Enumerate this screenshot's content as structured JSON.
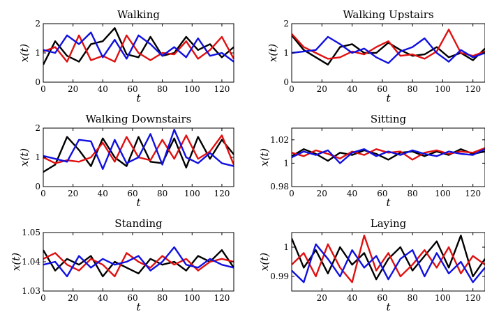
{
  "series_colors": [
    "#000000",
    "#e01010",
    "#1010e0"
  ],
  "chart_data": [
    {
      "type": "line",
      "title": "Walking",
      "xlabel": "t",
      "ylabel": "x(t)",
      "xlim": [
        0,
        128
      ],
      "ylim": [
        0,
        2
      ],
      "xticks": [
        0,
        20,
        40,
        60,
        80,
        100,
        120
      ],
      "yticks": [
        0,
        1,
        2
      ],
      "grid": false,
      "x": [
        0,
        8,
        16,
        24,
        32,
        40,
        48,
        56,
        64,
        72,
        80,
        88,
        96,
        104,
        112,
        120,
        128
      ],
      "series": [
        {
          "color": "#000000",
          "values": [
            0.6,
            1.4,
            0.9,
            0.7,
            1.3,
            1.4,
            1.85,
            0.95,
            0.85,
            1.55,
            0.9,
            1.0,
            1.55,
            1.1,
            1.3,
            0.85,
            1.2
          ]
        },
        {
          "color": "#e01010",
          "values": [
            1.05,
            1.2,
            0.7,
            1.6,
            0.75,
            0.9,
            0.7,
            1.6,
            1.0,
            0.75,
            1.0,
            0.95,
            1.4,
            0.8,
            1.1,
            1.55,
            0.8
          ]
        },
        {
          "color": "#1010e0",
          "values": [
            1.1,
            1.0,
            1.6,
            1.3,
            1.7,
            0.85,
            1.45,
            0.8,
            1.6,
            1.3,
            0.9,
            1.2,
            0.85,
            1.5,
            0.9,
            1.0,
            0.7
          ]
        }
      ]
    },
    {
      "type": "line",
      "title": "Walking Upstairs",
      "xlabel": "t",
      "ylabel": "x(t)",
      "xlim": [
        0,
        128
      ],
      "ylim": [
        0,
        2
      ],
      "xticks": [
        0,
        20,
        40,
        60,
        80,
        100,
        120
      ],
      "yticks": [
        0,
        1,
        2
      ],
      "grid": false,
      "x": [
        0,
        8,
        16,
        24,
        32,
        40,
        48,
        56,
        64,
        72,
        80,
        88,
        96,
        104,
        112,
        120,
        128
      ],
      "series": [
        {
          "color": "#000000",
          "values": [
            1.6,
            1.1,
            0.85,
            0.6,
            1.2,
            1.3,
            1.0,
            1.0,
            1.35,
            1.1,
            0.9,
            0.95,
            1.2,
            0.85,
            1.0,
            0.75,
            1.15
          ]
        },
        {
          "color": "#e01010",
          "values": [
            1.65,
            1.2,
            1.0,
            0.8,
            0.85,
            1.05,
            0.95,
            1.2,
            1.4,
            0.9,
            0.95,
            0.8,
            1.05,
            1.8,
            1.0,
            0.9,
            1.05
          ]
        },
        {
          "color": "#1010e0",
          "values": [
            1.0,
            1.05,
            1.1,
            1.55,
            1.3,
            1.0,
            1.15,
            0.85,
            0.65,
            1.05,
            1.2,
            1.5,
            1.0,
            0.7,
            1.1,
            0.85,
            1.0
          ]
        }
      ]
    },
    {
      "type": "line",
      "title": "Walking Downstairs",
      "xlabel": "t",
      "ylabel": "x(t)",
      "xlim": [
        0,
        128
      ],
      "ylim": [
        0,
        2
      ],
      "xticks": [
        0,
        20,
        40,
        60,
        80,
        100,
        120
      ],
      "yticks": [
        0,
        1,
        2
      ],
      "grid": false,
      "x": [
        0,
        8,
        16,
        24,
        32,
        40,
        48,
        56,
        64,
        72,
        80,
        88,
        96,
        104,
        112,
        120,
        128
      ],
      "series": [
        {
          "color": "#000000",
          "values": [
            0.5,
            0.75,
            1.7,
            1.25,
            0.7,
            1.65,
            1.0,
            0.7,
            1.7,
            0.85,
            0.8,
            1.65,
            0.65,
            1.7,
            0.95,
            1.6,
            1.1
          ]
        },
        {
          "color": "#e01010",
          "values": [
            1.0,
            0.8,
            0.9,
            0.85,
            1.0,
            1.5,
            0.85,
            1.7,
            1.0,
            0.9,
            1.6,
            0.95,
            1.75,
            0.95,
            1.2,
            1.75,
            0.75
          ]
        },
        {
          "color": "#1010e0",
          "values": [
            1.05,
            0.95,
            0.85,
            1.6,
            1.55,
            0.6,
            1.6,
            0.8,
            1.0,
            1.8,
            0.75,
            1.95,
            1.0,
            0.8,
            1.15,
            0.8,
            0.7
          ]
        }
      ]
    },
    {
      "type": "line",
      "title": "Sitting",
      "xlabel": "t",
      "ylabel": "x(t)",
      "xlim": [
        0,
        128
      ],
      "ylim": [
        0.98,
        1.03
      ],
      "xticks": [
        0,
        20,
        40,
        60,
        80,
        100,
        120
      ],
      "yticks": [
        0.98,
        1,
        1.02
      ],
      "ytick_labels": [
        "0.98",
        "1",
        "1.02"
      ],
      "grid": false,
      "x": [
        0,
        8,
        16,
        24,
        32,
        40,
        48,
        56,
        64,
        72,
        80,
        88,
        96,
        104,
        112,
        120,
        128
      ],
      "series": [
        {
          "color": "#000000",
          "values": [
            1.006,
            1.012,
            1.008,
            1.002,
            1.009,
            1.007,
            1.011,
            1.008,
            1.003,
            1.009,
            1.01,
            1.006,
            1.01,
            1.007,
            1.012,
            1.008,
            1.01
          ]
        },
        {
          "color": "#e01010",
          "values": [
            1.009,
            1.006,
            1.011,
            1.008,
            1.004,
            1.01,
            1.007,
            1.012,
            1.009,
            1.01,
            1.003,
            1.009,
            1.011,
            1.008,
            1.01,
            1.009,
            1.013
          ]
        },
        {
          "color": "#1010e0",
          "values": [
            1.005,
            1.01,
            1.007,
            1.011,
            1.0,
            1.009,
            1.012,
            1.006,
            1.01,
            1.007,
            1.011,
            1.008,
            1.006,
            1.01,
            1.008,
            1.007,
            1.012
          ]
        }
      ]
    },
    {
      "type": "line",
      "title": "Standing",
      "xlabel": "t",
      "ylabel": "x(t)",
      "xlim": [
        0,
        128
      ],
      "ylim": [
        1.03,
        1.05
      ],
      "xticks": [
        0,
        20,
        40,
        60,
        80,
        100,
        120
      ],
      "yticks": [
        1.03,
        1.04,
        1.05
      ],
      "ytick_labels": [
        "1.03",
        "1.04",
        "1.05"
      ],
      "grid": false,
      "x": [
        0,
        8,
        16,
        24,
        32,
        40,
        48,
        56,
        64,
        72,
        80,
        88,
        96,
        104,
        112,
        120,
        128
      ],
      "series": [
        {
          "color": "#000000",
          "values": [
            1.044,
            1.037,
            1.041,
            1.039,
            1.042,
            1.035,
            1.04,
            1.038,
            1.036,
            1.041,
            1.039,
            1.04,
            1.037,
            1.042,
            1.04,
            1.044,
            1.038
          ]
        },
        {
          "color": "#e01010",
          "values": [
            1.041,
            1.043,
            1.039,
            1.037,
            1.041,
            1.039,
            1.035,
            1.043,
            1.04,
            1.038,
            1.042,
            1.039,
            1.041,
            1.037,
            1.04,
            1.041,
            1.04
          ]
        },
        {
          "color": "#1010e0",
          "values": [
            1.039,
            1.04,
            1.035,
            1.042,
            1.038,
            1.041,
            1.039,
            1.04,
            1.042,
            1.037,
            1.04,
            1.045,
            1.039,
            1.038,
            1.041,
            1.039,
            1.038
          ]
        }
      ]
    },
    {
      "type": "line",
      "title": "Laying",
      "xlabel": "t",
      "ylabel": "x(t)",
      "xlim": [
        0,
        128
      ],
      "ylim": [
        0.985,
        1.005
      ],
      "xticks": [
        20,
        40,
        60,
        80,
        100,
        120
      ],
      "yticks": [
        0.99,
        1
      ],
      "ytick_labels": [
        "0.99",
        "1"
      ],
      "grid": false,
      "x": [
        0,
        8,
        16,
        24,
        32,
        40,
        48,
        56,
        64,
        72,
        80,
        88,
        96,
        104,
        112,
        120,
        128
      ],
      "series": [
        {
          "color": "#000000",
          "values": [
            1.003,
            0.993,
            0.999,
            0.991,
            1.0,
            0.994,
            0.998,
            0.989,
            0.996,
            1.0,
            0.992,
            0.997,
            1.002,
            0.993,
            1.004,
            0.99,
            0.996
          ]
        },
        {
          "color": "#e01010",
          "values": [
            0.994,
            0.998,
            0.99,
            1.001,
            0.993,
            0.988,
            1.004,
            0.992,
            0.998,
            0.99,
            0.994,
            0.999,
            0.993,
            1.0,
            0.991,
            0.997,
            0.994
          ]
        },
        {
          "color": "#1010e0",
          "values": [
            0.992,
            0.988,
            1.001,
            0.996,
            0.99,
            0.999,
            0.993,
            0.997,
            0.989,
            0.996,
            0.999,
            0.99,
            0.998,
            0.991,
            0.995,
            0.988,
            0.993
          ]
        }
      ]
    }
  ]
}
